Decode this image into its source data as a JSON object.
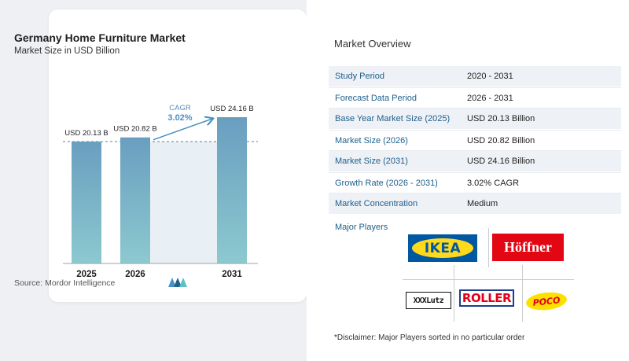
{
  "chart": {
    "title": "Germany Home Furniture Market",
    "subtitle": "Market Size in USD Billion",
    "source": "Source:  Mordor Intelligence",
    "cagr_label": "CAGR",
    "cagr_value": "3.02%"
  },
  "chart_data": {
    "type": "bar",
    "categories": [
      "2025",
      "2026",
      "2031"
    ],
    "values": [
      20.13,
      20.82,
      24.16
    ],
    "data_labels": [
      "USD 20.13 B",
      "USD 20.82 B",
      "USD 24.16 B"
    ],
    "title": "Germany Home Furniture Market",
    "subtitle": "Market Size in USD Billion",
    "ylabel": "",
    "xlabel": "",
    "annotation": "CAGR 3.02%",
    "grid": false
  },
  "overview": {
    "title": "Market Overview",
    "rows": [
      {
        "label": "Study Period",
        "value": "2020 - 2031"
      },
      {
        "label": "Forecast Data Period",
        "value": "2026 - 2031"
      },
      {
        "label": "Base Year Market Size (2025)",
        "value": "USD 20.13 Billion"
      },
      {
        "label": "Market Size (2026)",
        "value": "USD 20.82 Billion"
      },
      {
        "label": "Market Size (2031)",
        "value": "USD 24.16 Billion"
      },
      {
        "label": "Growth Rate (2026 - 2031)",
        "value": "3.02% CAGR"
      },
      {
        "label": "Market Concentration",
        "value": "Medium"
      }
    ]
  },
  "players": {
    "title": "Major Players",
    "names": [
      "IKEA",
      "Höffner",
      "XXXLutz",
      "ROLLER",
      "POCO"
    ]
  },
  "disclaimer": "*Disclaimer: Major Players sorted in no particular order",
  "colors": {
    "bar_top": "#6a9ec0",
    "bar_bottom": "#8cc9cf",
    "accent": "#1f5f8b",
    "ikea_blue": "#0058a3",
    "ikea_yellow": "#ffda1a",
    "hoffner_red": "#e30613",
    "roller_red": "#e2001a"
  }
}
